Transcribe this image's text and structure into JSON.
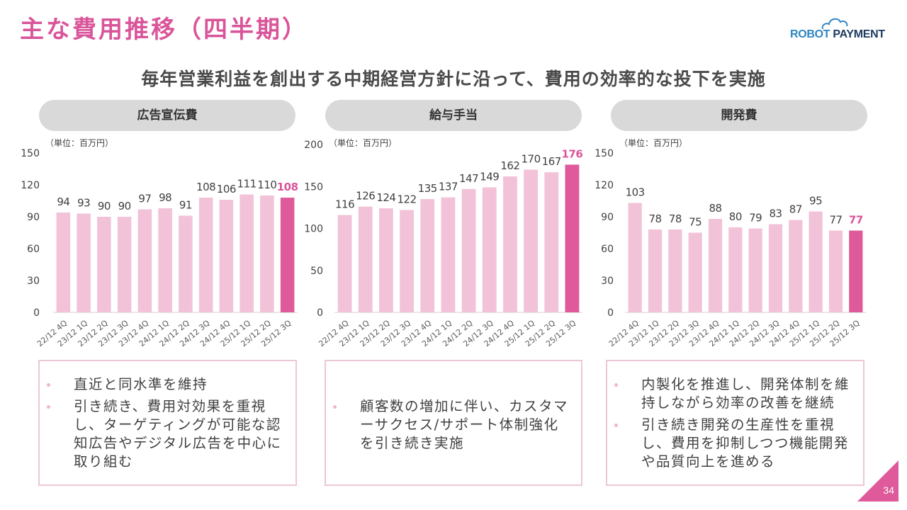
{
  "header": {
    "title": "主な費用推移（四半期）",
    "subtitle": "毎年営業利益を創出する中期経営方針に沿って、費用の効率的な投下を実施",
    "logo": {
      "part1": "ROBOT",
      "part2": " PAYMENT",
      "icon": "cloud-icon"
    }
  },
  "colors": {
    "accent": "#d9559a",
    "bar_normal": "#f2c3d8",
    "bar_highlight": "#de5a9a",
    "pill_bg": "#d9d9d9",
    "box_border": "#ecc7d8"
  },
  "panels": [
    {
      "label": "広告宣伝費",
      "unit": "（単位：百万円）",
      "bullets": [
        "直近と同水準を維持",
        "引き続き、費用対効果を重視し、ターゲティングが可能な認知広告やデジタル広告を中心に取り組む"
      ]
    },
    {
      "label": "給与手当",
      "unit": "（単位：百万円）",
      "bullets": [
        "顧客数の増加に伴い、カスタマーサクセス/サポート体制強化を引き続き実施"
      ]
    },
    {
      "label": "開発費",
      "unit": "（単位：百万円）",
      "bullets": [
        "内製化を推進し、開発体制を維持しながら効率の改善を継続",
        "引き続き開発の生産性を重視し、費用を抑制しつつ機能開発や品質向上を進める"
      ]
    }
  ],
  "chart_data": [
    {
      "type": "bar",
      "title": "広告宣伝費",
      "ylabel": "（単位：百万円）",
      "categories": [
        "22/12 4Q",
        "23/12 1Q",
        "23/12 2Q",
        "23/12 3Q",
        "23/12 4Q",
        "24/12 1Q",
        "24/12 2Q",
        "24/12 3Q",
        "24/12 4Q",
        "25/12 1Q",
        "25/12 2Q",
        "25/12 3Q"
      ],
      "values": [
        94,
        93,
        90,
        90,
        97,
        98,
        91,
        108,
        106,
        111,
        110,
        108
      ],
      "highlight_index": 11,
      "ylim": [
        0,
        150
      ],
      "yticks": [
        0,
        30,
        60,
        90,
        120,
        150
      ],
      "grid": false
    },
    {
      "type": "bar",
      "title": "給与手当",
      "ylabel": "（単位：百万円）",
      "categories": [
        "22/12 4Q",
        "23/12 1Q",
        "23/12 2Q",
        "23/12 3Q",
        "23/12 4Q",
        "24/12 1Q",
        "24/12 2Q",
        "24/12 3Q",
        "24/12 4Q",
        "25/12 1Q",
        "25/12 2Q",
        "25/12 3Q"
      ],
      "values": [
        116,
        126,
        124,
        122,
        135,
        137,
        147,
        149,
        162,
        170,
        167,
        176
      ],
      "highlight_index": 11,
      "ylim": [
        0,
        200
      ],
      "yticks": [
        0,
        50,
        100,
        150,
        200
      ],
      "grid": false
    },
    {
      "type": "bar",
      "title": "開発費",
      "ylabel": "（単位：百万円）",
      "categories": [
        "22/12 4Q",
        "23/12 1Q",
        "23/12 2Q",
        "23/12 3Q",
        "23/12 4Q",
        "24/12 1Q",
        "24/12 2Q",
        "24/12 3Q",
        "24/12 4Q",
        "25/12 1Q",
        "25/12 2Q",
        "25/12 3Q"
      ],
      "values": [
        103,
        78,
        78,
        75,
        88,
        80,
        79,
        83,
        87,
        95,
        77,
        77
      ],
      "highlight_index": 11,
      "ylim": [
        0,
        150
      ],
      "yticks": [
        0,
        30,
        60,
        90,
        120,
        150
      ],
      "grid": false
    }
  ],
  "footer": {
    "page_number": "34"
  }
}
